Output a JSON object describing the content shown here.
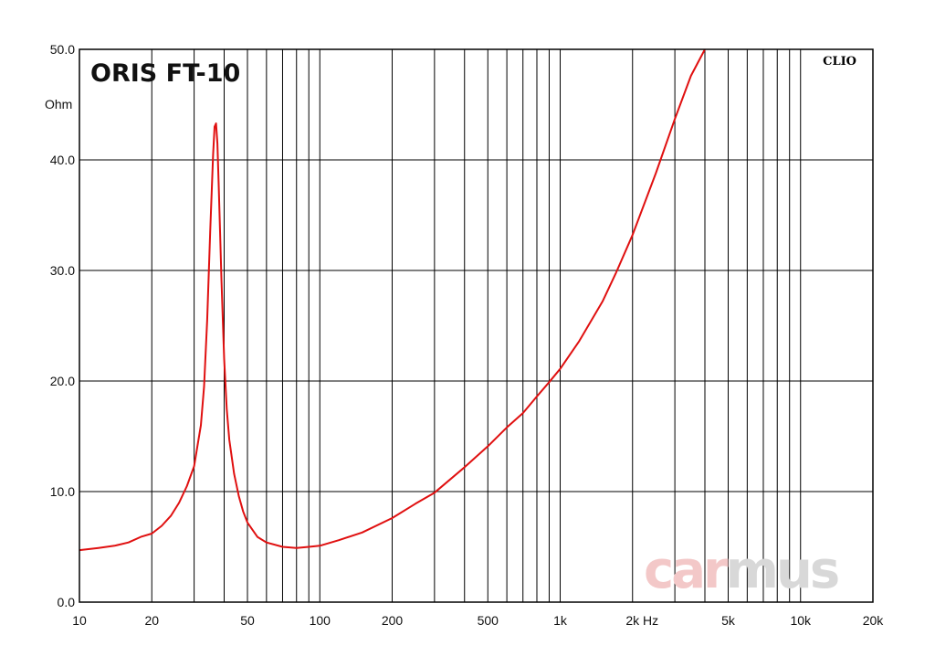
{
  "chart_data": {
    "type": "line",
    "title": "ORIS FT-10",
    "ylabel": "Ohm",
    "xlabel": "Hz",
    "brand": "CLIO",
    "watermark": {
      "part1": "car",
      "part2": "mus",
      "color1": "#f3c8c8",
      "color2": "#d8d8d8"
    },
    "x_scale": "log",
    "xlim": [
      10,
      20000
    ],
    "ylim": [
      0,
      50
    ],
    "grid": true,
    "line_color": "#e01010",
    "x_tick_labels": [
      {
        "value": 10,
        "label": "10"
      },
      {
        "value": 20,
        "label": "20"
      },
      {
        "value": 50,
        "label": "50"
      },
      {
        "value": 100,
        "label": "100"
      },
      {
        "value": 200,
        "label": "200"
      },
      {
        "value": 500,
        "label": "500"
      },
      {
        "value": 1000,
        "label": "1k"
      },
      {
        "value": 2000,
        "label": "2k"
      },
      {
        "value": 5000,
        "label": "5k"
      },
      {
        "value": 10000,
        "label": "10k"
      },
      {
        "value": 20000,
        "label": "20k"
      }
    ],
    "y_tick_labels": [
      {
        "value": 0,
        "label": "0.0"
      },
      {
        "value": 10,
        "label": "10.0"
      },
      {
        "value": 20,
        "label": "20.0"
      },
      {
        "value": 30,
        "label": "30.0"
      },
      {
        "value": 40,
        "label": "40.0"
      },
      {
        "value": 50,
        "label": "50.0"
      }
    ],
    "series": [
      {
        "x": [
          10,
          12,
          14,
          16,
          18,
          20,
          22,
          24,
          26,
          28,
          30,
          32,
          33,
          34,
          35,
          36,
          36.5,
          37,
          37.5,
          38,
          39,
          40,
          41,
          42,
          44,
          46,
          48,
          50,
          55,
          60,
          70,
          80,
          90,
          100,
          120,
          150,
          200,
          250,
          300,
          400,
          500,
          600,
          700,
          800,
          900,
          1000,
          1200,
          1500,
          1700,
          2000,
          2500,
          3000,
          3500,
          4000
        ],
        "y": [
          4.7,
          4.9,
          5.1,
          5.4,
          5.9,
          6.2,
          6.9,
          7.8,
          9.0,
          10.5,
          12.3,
          16.0,
          19.5,
          25.5,
          33.5,
          40.5,
          43.0,
          43.3,
          41.5,
          37.5,
          29.0,
          22.0,
          17.5,
          14.7,
          11.6,
          9.6,
          8.2,
          7.2,
          5.9,
          5.4,
          5.0,
          4.9,
          5.0,
          5.1,
          5.6,
          6.3,
          7.6,
          8.9,
          9.9,
          12.2,
          14.1,
          15.8,
          17.1,
          18.6,
          19.9,
          21.1,
          23.6,
          27.2,
          29.7,
          33.2,
          38.8,
          43.7,
          47.6,
          50.0
        ]
      }
    ]
  }
}
